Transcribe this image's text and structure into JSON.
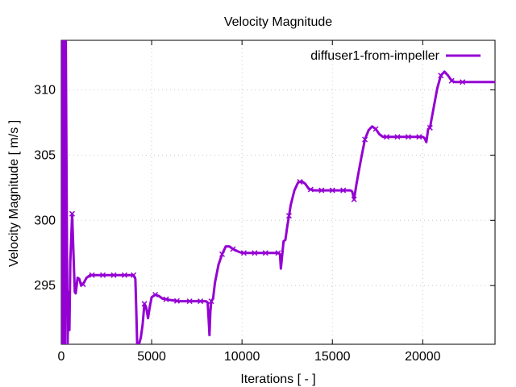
{
  "chart_data": {
    "type": "line",
    "title": "Velocity Magnitude",
    "xlabel": "Iterations [ - ]",
    "ylabel": "Velocity Magnitude [ m/s ]",
    "xlim": [
      0,
      24000
    ],
    "ylim": [
      290.5,
      313.8
    ],
    "x_ticks": [
      0,
      5000,
      10000,
      15000,
      20000
    ],
    "x_tick_labels": [
      "0",
      "5000",
      "10000",
      "15000",
      "20000"
    ],
    "y_ticks": [
      295,
      300,
      305,
      310
    ],
    "y_tick_labels": [
      "295",
      "300",
      "305",
      "310"
    ],
    "grid": true,
    "legend_position": "top-right",
    "series": [
      {
        "name": "diffuser1-from-impeller",
        "color": "#9400d3",
        "points": [
          [
            0,
            290.5
          ],
          [
            50,
            313.8
          ],
          [
            100,
            290.5
          ],
          [
            150,
            313.8
          ],
          [
            200,
            290.5
          ],
          [
            250,
            313.8
          ],
          [
            300,
            301.5
          ],
          [
            350,
            290.5
          ],
          [
            400,
            294.5
          ],
          [
            450,
            291.6
          ],
          [
            500,
            296.8
          ],
          [
            600,
            300.5
          ],
          [
            650,
            298.5
          ],
          [
            700,
            296.4
          ],
          [
            750,
            294.5
          ],
          [
            800,
            294.4
          ],
          [
            900,
            295.6
          ],
          [
            1000,
            295.5
          ],
          [
            1100,
            295.0
          ],
          [
            1200,
            295.1
          ],
          [
            1400,
            295.6
          ],
          [
            1600,
            295.8
          ],
          [
            1800,
            295.8
          ],
          [
            2000,
            295.8
          ],
          [
            2500,
            295.8
          ],
          [
            3000,
            295.8
          ],
          [
            3500,
            295.8
          ],
          [
            4000,
            295.8
          ],
          [
            4100,
            295.5
          ],
          [
            4150,
            293.1
          ],
          [
            4200,
            290.5
          ],
          [
            4300,
            290.5
          ],
          [
            4400,
            291.0
          ],
          [
            4500,
            292.0
          ],
          [
            4600,
            293.6
          ],
          [
            4700,
            293.3
          ],
          [
            4800,
            292.5
          ],
          [
            4900,
            293.4
          ],
          [
            5000,
            294.1
          ],
          [
            5200,
            294.3
          ],
          [
            5400,
            294.2
          ],
          [
            5600,
            294.0
          ],
          [
            6000,
            293.9
          ],
          [
            6500,
            293.8
          ],
          [
            7000,
            293.8
          ],
          [
            7500,
            293.8
          ],
          [
            8000,
            293.8
          ],
          [
            8100,
            293.7
          ],
          [
            8150,
            292.5
          ],
          [
            8200,
            291.2
          ],
          [
            8250,
            293.0
          ],
          [
            8300,
            293.8
          ],
          [
            8400,
            294.0
          ],
          [
            8500,
            295.2
          ],
          [
            8700,
            296.6
          ],
          [
            8900,
            297.4
          ],
          [
            9100,
            298.0
          ],
          [
            9300,
            298.0
          ],
          [
            9500,
            297.8
          ],
          [
            9800,
            297.6
          ],
          [
            10000,
            297.5
          ],
          [
            11000,
            297.5
          ],
          [
            12000,
            297.5
          ],
          [
            12100,
            297.4
          ],
          [
            12150,
            296.3
          ],
          [
            12200,
            297.0
          ],
          [
            12300,
            298.4
          ],
          [
            12400,
            298.5
          ],
          [
            12500,
            299.5
          ],
          [
            12700,
            301.2
          ],
          [
            12900,
            302.3
          ],
          [
            13100,
            302.9
          ],
          [
            13300,
            303.0
          ],
          [
            13500,
            302.8
          ],
          [
            13700,
            302.4
          ],
          [
            14000,
            302.3
          ],
          [
            15000,
            302.3
          ],
          [
            16000,
            302.3
          ],
          [
            16100,
            302.2
          ],
          [
            16200,
            301.6
          ],
          [
            16300,
            302.5
          ],
          [
            16400,
            303.3
          ],
          [
            16600,
            304.8
          ],
          [
            16800,
            306.2
          ],
          [
            17000,
            306.9
          ],
          [
            17200,
            307.2
          ],
          [
            17400,
            307.0
          ],
          [
            17600,
            306.6
          ],
          [
            17800,
            306.4
          ],
          [
            18000,
            306.4
          ],
          [
            19000,
            306.4
          ],
          [
            20000,
            306.4
          ],
          [
            20100,
            306.3
          ],
          [
            20200,
            306.0
          ],
          [
            20300,
            307.0
          ],
          [
            20400,
            307.1
          ],
          [
            20600,
            308.6
          ],
          [
            20800,
            310.1
          ],
          [
            21000,
            311.1
          ],
          [
            21200,
            311.4
          ],
          [
            21400,
            311.1
          ],
          [
            21600,
            310.7
          ],
          [
            21800,
            310.6
          ],
          [
            22000,
            310.6
          ],
          [
            23000,
            310.6
          ],
          [
            24000,
            310.6
          ]
        ],
        "markers_x": [
          600,
          1200,
          1700,
          2300,
          2900,
          3500,
          4000,
          4600,
          5200,
          5800,
          6400,
          7100,
          7700,
          8300,
          8900,
          9500,
          10100,
          10700,
          11300,
          12000,
          12600,
          13200,
          13800,
          14400,
          15000,
          15600,
          16200,
          16800,
          17400,
          18000,
          18600,
          19200,
          19800,
          20400,
          21000,
          21600,
          22200
        ]
      }
    ]
  }
}
